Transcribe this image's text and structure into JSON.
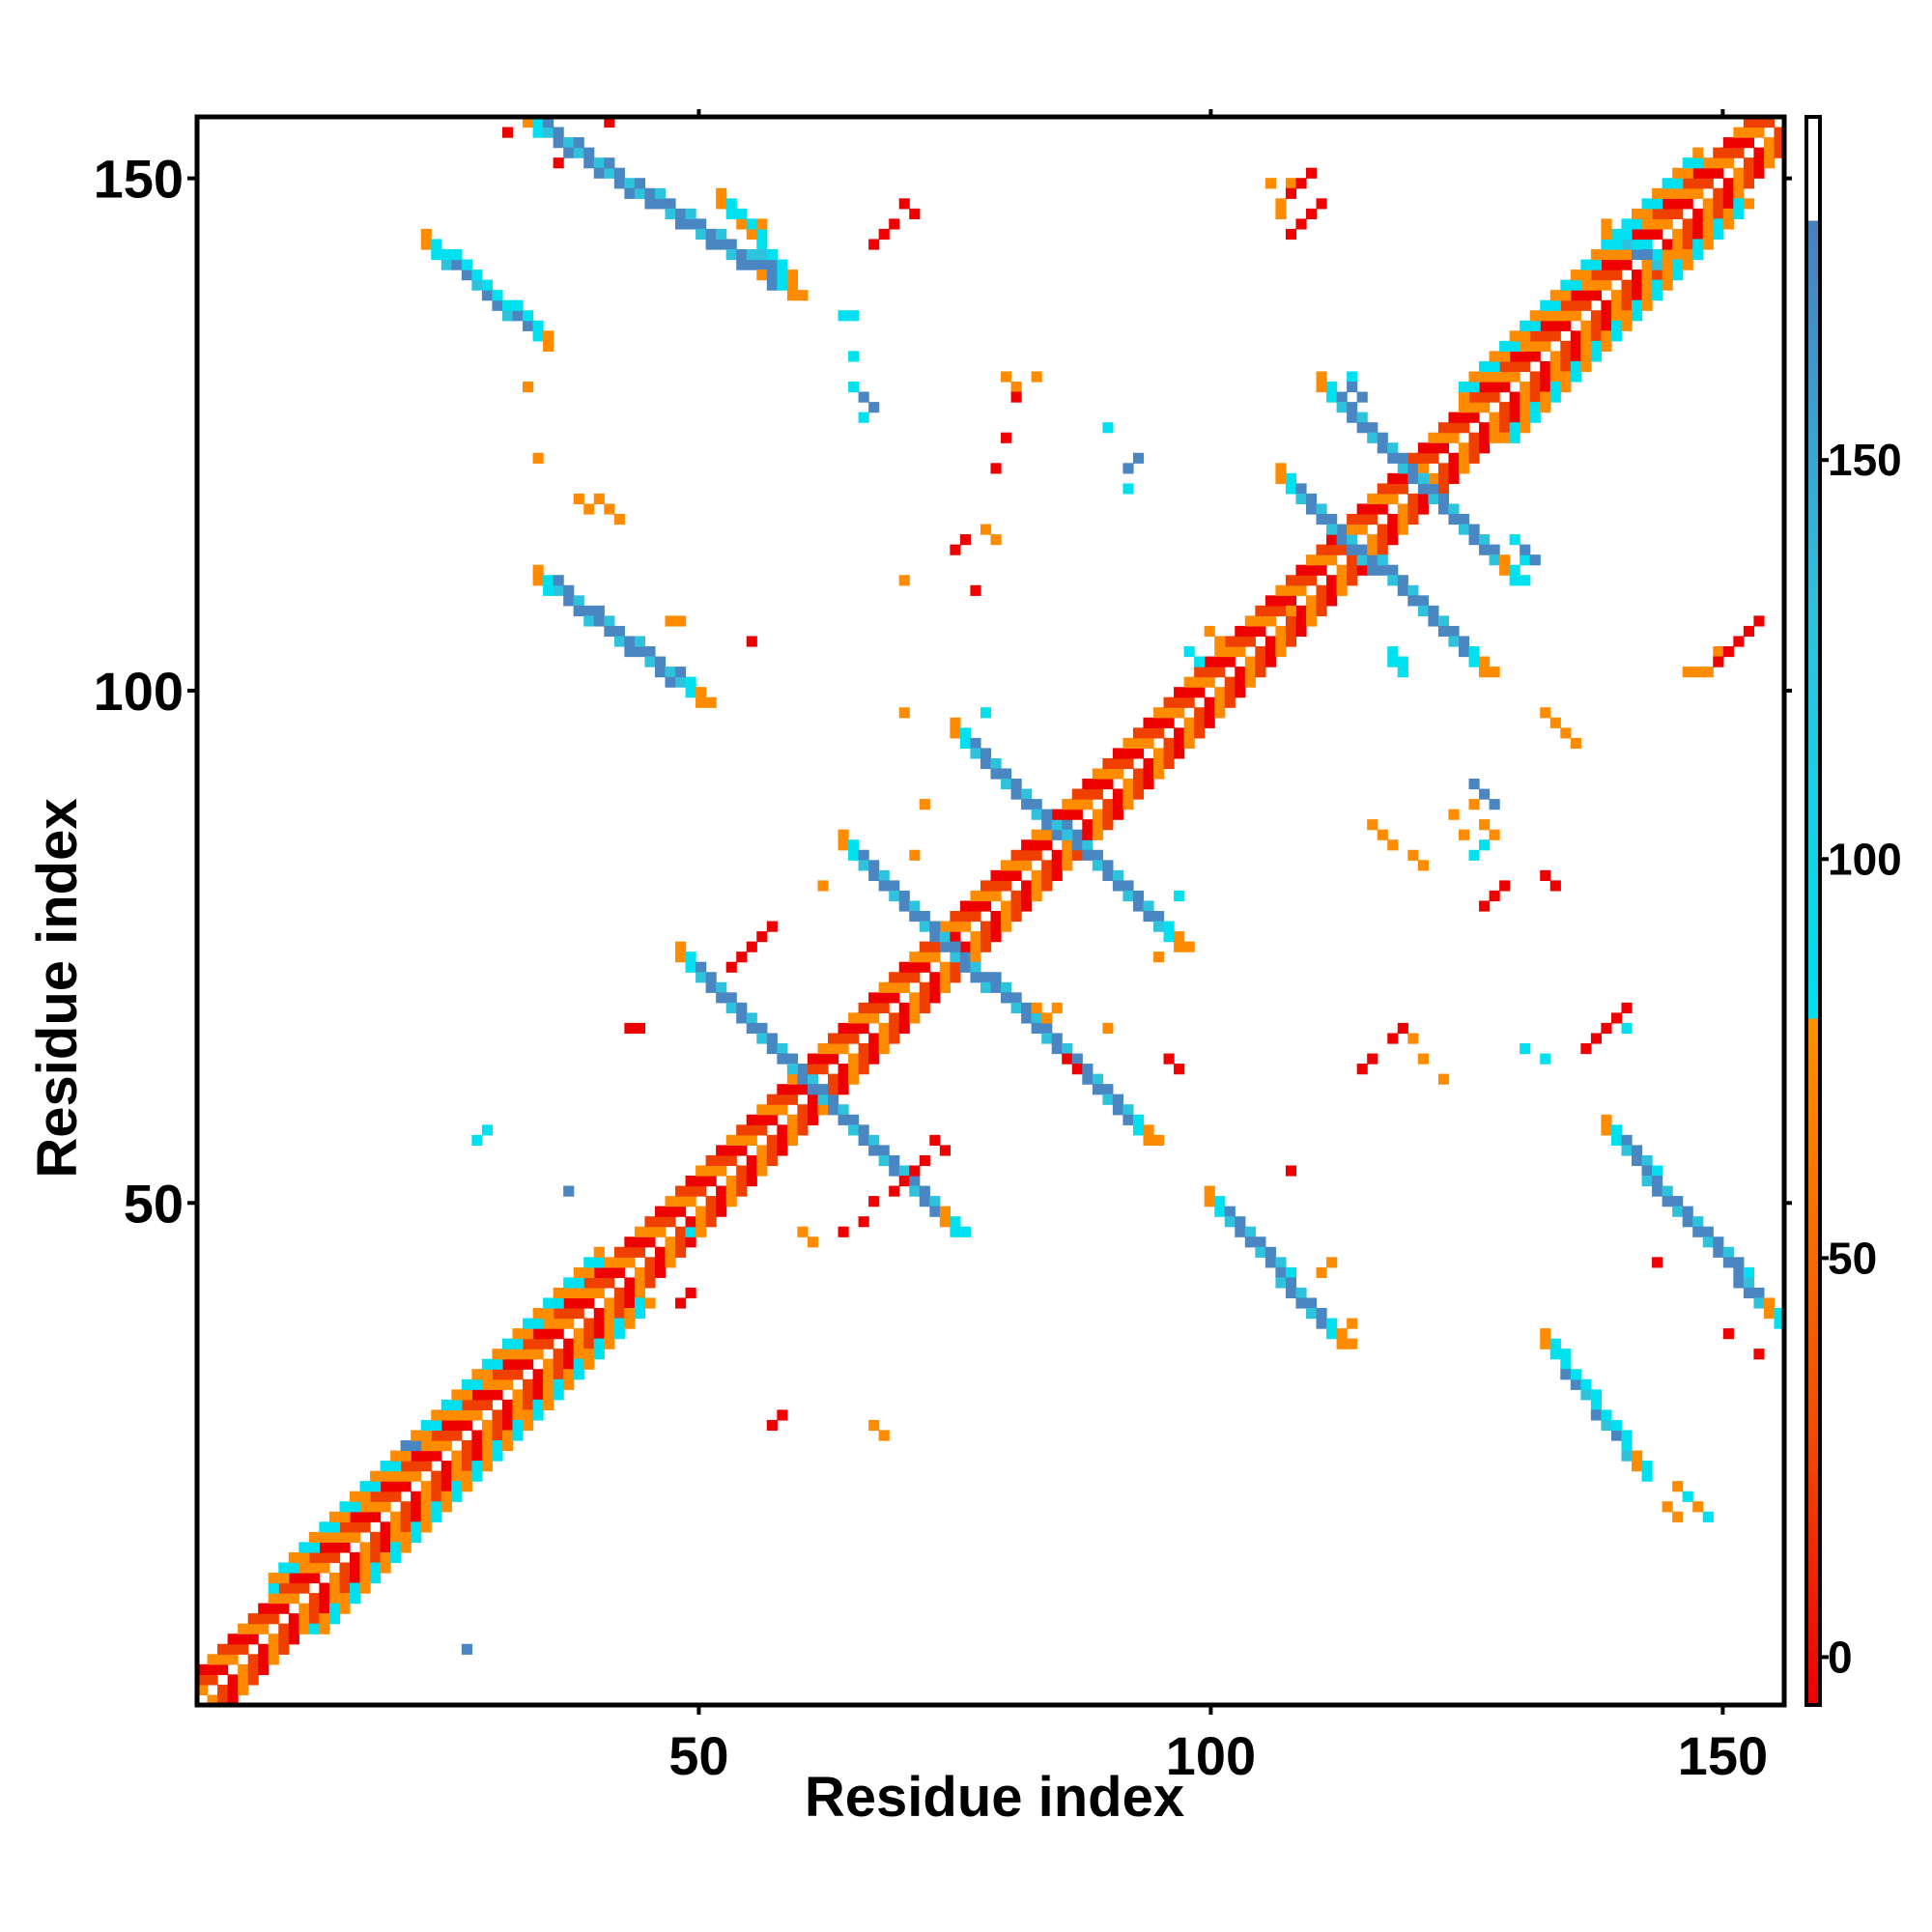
{
  "chart_data": {
    "type": "heatmap",
    "title": "",
    "xlabel": "Residue index",
    "ylabel": "Residue index",
    "xlim": [
      1,
      156
    ],
    "ylim": [
      1,
      156
    ],
    "xticks": [
      50,
      100,
      150
    ],
    "yticks": [
      50,
      100,
      150
    ],
    "colorbar": {
      "ticks": [
        0,
        50,
        100,
        150
      ],
      "range": [
        -6,
        193
      ],
      "bands": [
        {
          "from": -6,
          "to": 30,
          "color": "#ee0000"
        },
        {
          "from": 30,
          "to": 80,
          "color": "#ff8000"
        },
        {
          "from": 80,
          "to": 180,
          "color": "#00d8e8"
        },
        {
          "from": 180,
          "to": 193,
          "color": "#ffffff"
        }
      ],
      "gradient": [
        {
          "value": -6,
          "color": "#ee0000"
        },
        {
          "value": 30,
          "color": "#f05000"
        },
        {
          "value": 80,
          "color": "#ff9000"
        },
        {
          "value": 80,
          "color": "#00e0ee"
        },
        {
          "value": 130,
          "color": "#2ec2dc"
        },
        {
          "value": 180,
          "color": "#4a7fbd"
        },
        {
          "value": 180,
          "color": "#ffffff"
        }
      ]
    },
    "palette": {
      "red": "#ee0000",
      "red_orange": "#f04000",
      "orange": "#ff8c00",
      "cyan": "#00e0ee",
      "light_blue": "#2ec2dc",
      "steel_blue": "#4a86c2"
    },
    "regions": [
      {
        "kind": "diag_band",
        "from": 1,
        "to": 156,
        "offsets": [
          1,
          2,
          3
        ],
        "colors": [
          "red",
          "orange",
          "red_orange"
        ]
      },
      {
        "kind": "diag_band",
        "from": 8,
        "to": 40,
        "offsets": [
          4,
          5
        ],
        "colors": [
          "cyan",
          "orange"
        ]
      },
      {
        "kind": "diag_band",
        "from": 125,
        "to": 148,
        "offsets": [
          4,
          5
        ],
        "colors": [
          "cyan",
          "orange"
        ]
      },
      {
        "kind": "anti",
        "x1": 48,
        "y1": 74,
        "x2": 75,
        "y2": 47,
        "width": 4
      },
      {
        "kind": "anti",
        "x1": 64,
        "y1": 85,
        "x2": 94,
        "y2": 56,
        "width": 4
      },
      {
        "kind": "anti",
        "x1": 75,
        "y1": 96,
        "x2": 97,
        "y2": 75,
        "width": 4
      },
      {
        "kind": "anti",
        "x1": 107,
        "y1": 121,
        "x2": 127,
        "y2": 102,
        "width": 4
      },
      {
        "kind": "anti",
        "x1": 111,
        "y1": 130,
        "x2": 130,
        "y2": 111,
        "width": 4
      },
      {
        "kind": "anti",
        "x1": 33,
        "y1": 156,
        "x2": 59,
        "y2": 139,
        "width": 4
      },
      {
        "kind": "anti",
        "x1": 52,
        "y1": 148,
        "x2": 59,
        "y2": 140,
        "width": 3
      },
      {
        "kind": "anti",
        "x1": 23,
        "y1": 144,
        "x2": 35,
        "y2": 134,
        "width": 3
      },
      {
        "kind": "anti",
        "x1": 34,
        "y1": 111,
        "x2": 50,
        "y2": 99,
        "width": 4
      },
      {
        "kind": "anti",
        "x1": 100,
        "y1": 50,
        "x2": 113,
        "y2": 36,
        "width": 4
      },
      {
        "kind": "anti",
        "x1": 139,
        "y1": 57,
        "x2": 156,
        "y2": 38,
        "width": 4
      },
      {
        "kind": "anti",
        "x1": 133,
        "y1": 36,
        "x2": 143,
        "y2": 23,
        "width": 3
      },
      {
        "kind": "anti",
        "x1": 146,
        "y1": 22,
        "x2": 149,
        "y2": 19,
        "width": 2
      },
      {
        "kind": "anti",
        "x1": 139,
        "y1": 145,
        "x2": 146,
        "y2": 141,
        "width": 3
      },
      {
        "kind": "dots",
        "color": "cyan",
        "pts": [
          [
            64,
            137
          ],
          [
            65,
            133
          ],
          [
            65,
            130
          ],
          [
            66,
            127
          ],
          [
            92,
            120
          ],
          [
            90,
            126
          ],
          [
            114,
            131
          ],
          [
            119,
            103
          ],
          [
            119,
            102
          ],
          [
            118,
            104
          ],
          [
            118,
            103
          ],
          [
            127,
            85
          ],
          [
            126,
            84
          ],
          [
            141,
            67
          ],
          [
            131,
            65
          ],
          [
            133,
            64
          ],
          [
            78,
            98
          ],
          [
            29,
            57
          ],
          [
            28,
            56
          ],
          [
            49,
            47
          ],
          [
            98,
            104
          ],
          [
            99,
            103
          ],
          [
            130,
            115
          ],
          [
            131,
            113
          ],
          [
            65,
            137
          ],
          [
            97,
            80
          ]
        ]
      },
      {
        "kind": "dots",
        "color": "steel_blue",
        "pts": [
          [
            114,
            130
          ],
          [
            115,
            129
          ],
          [
            131,
            114
          ],
          [
            132,
            113
          ],
          [
            126,
            91
          ],
          [
            127,
            90
          ],
          [
            128,
            89
          ],
          [
            21,
            26
          ],
          [
            22,
            26
          ],
          [
            37,
            51
          ],
          [
            27,
            6
          ],
          [
            67,
            128
          ],
          [
            66,
            129
          ],
          [
            93,
            123
          ],
          [
            92,
            122
          ]
        ]
      },
      {
        "kind": "dots",
        "color": "orange",
        "pts": [
          [
            33,
            130
          ],
          [
            108,
            150
          ],
          [
            106,
            150
          ],
          [
            107,
            148
          ],
          [
            107,
            147
          ],
          [
            83,
            131
          ],
          [
            80,
            131
          ],
          [
            81,
            130
          ],
          [
            72,
            89
          ],
          [
            71,
            84
          ],
          [
            54,
            146
          ],
          [
            55,
            145
          ],
          [
            56,
            146
          ],
          [
            70,
            98
          ],
          [
            62,
            81
          ],
          [
            90,
            67
          ],
          [
            95,
            74
          ],
          [
            67,
            28
          ],
          [
            68,
            27
          ],
          [
            34,
            123
          ],
          [
            47,
            107
          ],
          [
            48,
            107
          ],
          [
            120,
            66
          ],
          [
            121,
            64
          ],
          [
            123,
            62
          ],
          [
            147,
            102
          ],
          [
            148,
            102
          ],
          [
            149,
            102
          ],
          [
            150,
            104
          ],
          [
            145,
            20
          ],
          [
            146,
            19
          ],
          [
            111,
            43
          ],
          [
            112,
            44
          ],
          [
            108,
            108
          ],
          [
            59,
            140
          ],
          [
            56,
            141
          ],
          [
            38,
            119
          ],
          [
            39,
            118
          ],
          [
            40,
            119
          ],
          [
            41,
            118
          ],
          [
            42,
            117
          ],
          [
            116,
            87
          ],
          [
            117,
            86
          ],
          [
            118,
            85
          ],
          [
            120,
            84
          ],
          [
            121,
            83
          ],
          [
            124,
            88
          ],
          [
            125,
            86
          ],
          [
            126,
            89
          ],
          [
            127,
            87
          ],
          [
            128,
            86
          ],
          [
            113,
            37
          ],
          [
            114,
            38
          ],
          [
            100,
            106
          ],
          [
            101,
            105
          ],
          [
            60,
            47
          ],
          [
            61,
            46
          ],
          [
            135,
            96
          ],
          [
            136,
            95
          ],
          [
            133,
            98
          ],
          [
            134,
            97
          ],
          [
            83,
            69
          ],
          [
            84,
            68
          ],
          [
            85,
            69
          ],
          [
            70,
            111
          ],
          [
            79,
            115
          ],
          [
            78,
            116
          ]
        ]
      },
      {
        "kind": "dots",
        "color": "red",
        "pts": [
          [
            31,
            155
          ],
          [
            41,
            156
          ],
          [
            36,
            152
          ],
          [
            70,
            148
          ],
          [
            71,
            147
          ],
          [
            69,
            146
          ],
          [
            68,
            145
          ],
          [
            67,
            144
          ],
          [
            81,
            129
          ],
          [
            80,
            125
          ],
          [
            79,
            122
          ],
          [
            77,
            110
          ],
          [
            55,
            105
          ],
          [
            76,
            115
          ],
          [
            75,
            114
          ],
          [
            56,
            76
          ],
          [
            57,
            77
          ],
          [
            55,
            75
          ],
          [
            54,
            74
          ],
          [
            53,
            73
          ],
          [
            43,
            67
          ],
          [
            44,
            67
          ],
          [
            48,
            40
          ],
          [
            49,
            41
          ],
          [
            57,
            28
          ],
          [
            58,
            29
          ],
          [
            73,
            56
          ],
          [
            74,
            55
          ],
          [
            72,
            54
          ],
          [
            71,
            53
          ],
          [
            70,
            52
          ],
          [
            69,
            51
          ],
          [
            67,
            50
          ],
          [
            66,
            48
          ],
          [
            64,
            47
          ],
          [
            108,
            53
          ],
          [
            86,
            64
          ],
          [
            87,
            63
          ],
          [
            96,
            64
          ],
          [
            97,
            63
          ],
          [
            115,
            63
          ],
          [
            116,
            64
          ],
          [
            118,
            66
          ],
          [
            119,
            67
          ],
          [
            109,
            150
          ],
          [
            110,
            151
          ],
          [
            108,
            149
          ],
          [
            133,
            82
          ],
          [
            134,
            81
          ],
          [
            127,
            79
          ],
          [
            128,
            80
          ],
          [
            129,
            81
          ],
          [
            150,
            103
          ],
          [
            151,
            104
          ],
          [
            152,
            105
          ],
          [
            153,
            106
          ],
          [
            154,
            107
          ],
          [
            151,
            37
          ],
          [
            154,
            35
          ],
          [
            144,
            44
          ],
          [
            137,
            65
          ],
          [
            138,
            66
          ],
          [
            139,
            67
          ],
          [
            140,
            68
          ],
          [
            141,
            69
          ],
          [
            108,
            145
          ],
          [
            109,
            146
          ],
          [
            110,
            147
          ],
          [
            111,
            148
          ]
        ]
      }
    ]
  }
}
